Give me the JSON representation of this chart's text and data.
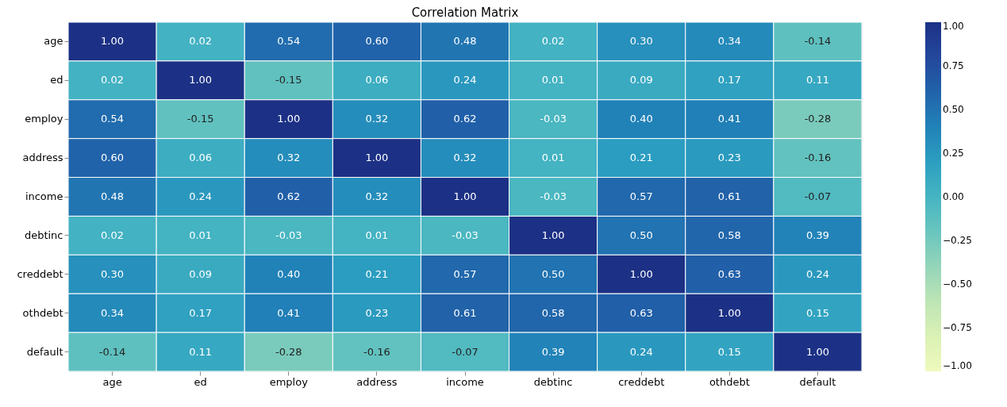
{
  "chart_data": {
    "type": "heatmap",
    "title": "Correlation Matrix",
    "categories": [
      "age",
      "ed",
      "employ",
      "address",
      "income",
      "debtinc",
      "creddebt",
      "othdebt",
      "default"
    ],
    "y_categories": [
      "age",
      "ed",
      "employ",
      "address",
      "income",
      "debtinc",
      "creddebt",
      "othdebt",
      "default"
    ],
    "cells": [
      [
        1.0,
        0.02,
        0.54,
        0.6,
        0.48,
        0.02,
        0.3,
        0.34,
        -0.14
      ],
      [
        0.02,
        1.0,
        -0.15,
        0.06,
        0.24,
        0.01,
        0.09,
        0.17,
        0.11
      ],
      [
        0.54,
        -0.15,
        1.0,
        0.32,
        0.62,
        -0.03,
        0.4,
        0.41,
        -0.28
      ],
      [
        0.6,
        0.06,
        0.32,
        1.0,
        0.32,
        0.01,
        0.21,
        0.23,
        -0.16
      ],
      [
        0.48,
        0.24,
        0.62,
        0.32,
        1.0,
        -0.03,
        0.57,
        0.61,
        -0.07
      ],
      [
        0.02,
        0.01,
        -0.03,
        0.01,
        -0.03,
        1.0,
        0.5,
        0.58,
        0.39
      ],
      [
        0.3,
        0.09,
        0.4,
        0.21,
        0.57,
        0.5,
        1.0,
        0.63,
        0.24
      ],
      [
        0.34,
        0.17,
        0.41,
        0.23,
        0.61,
        0.58,
        0.63,
        1.0,
        0.15
      ],
      [
        -0.14,
        0.11,
        -0.28,
        -0.16,
        -0.07,
        0.39,
        0.24,
        0.15,
        1.0
      ]
    ],
    "cell_labels": [
      [
        "1.00",
        "0.02",
        "0.54",
        "0.60",
        "0.48",
        "0.02",
        "0.30",
        "0.34",
        "-0.14"
      ],
      [
        "0.02",
        "1.00",
        "-0.15",
        "0.06",
        "0.24",
        "0.01",
        "0.09",
        "0.17",
        "0.11"
      ],
      [
        "0.54",
        "-0.15",
        "1.00",
        "0.32",
        "0.62",
        "-0.03",
        "0.40",
        "0.41",
        "-0.28"
      ],
      [
        "0.60",
        "0.06",
        "0.32",
        "1.00",
        "0.32",
        "0.01",
        "0.21",
        "0.23",
        "-0.16"
      ],
      [
        "0.48",
        "0.24",
        "0.62",
        "0.32",
        "1.00",
        "-0.03",
        "0.57",
        "0.61",
        "-0.07"
      ],
      [
        "0.02",
        "0.01",
        "-0.03",
        "0.01",
        "-0.03",
        "1.00",
        "0.50",
        "0.58",
        "0.39"
      ],
      [
        "0.30",
        "0.09",
        "0.40",
        "0.21",
        "0.57",
        "0.50",
        "1.00",
        "0.63",
        "0.24"
      ],
      [
        "0.34",
        "0.17",
        "0.41",
        "0.23",
        "0.61",
        "0.58",
        "0.63",
        "1.00",
        "0.15"
      ],
      [
        "-0.14",
        "0.11",
        "-0.28",
        "-0.16",
        "-0.07",
        "0.39",
        "0.24",
        "0.15",
        "1.00"
      ]
    ],
    "clim": [
      -1,
      1
    ],
    "cticks": [
      {
        "value": -1,
        "label": "−1.00"
      },
      {
        "value": -0.75,
        "label": "−0.75"
      },
      {
        "value": -0.5,
        "label": "−0.50"
      },
      {
        "value": -0.25,
        "label": "−0.25"
      },
      {
        "value": 0,
        "label": "0.00"
      },
      {
        "value": 0.25,
        "label": "0.25"
      },
      {
        "value": 0.5,
        "label": "0.50"
      },
      {
        "value": 0.75,
        "label": "0.75"
      },
      {
        "value": 1,
        "label": "1.00"
      }
    ],
    "grid": false
  }
}
